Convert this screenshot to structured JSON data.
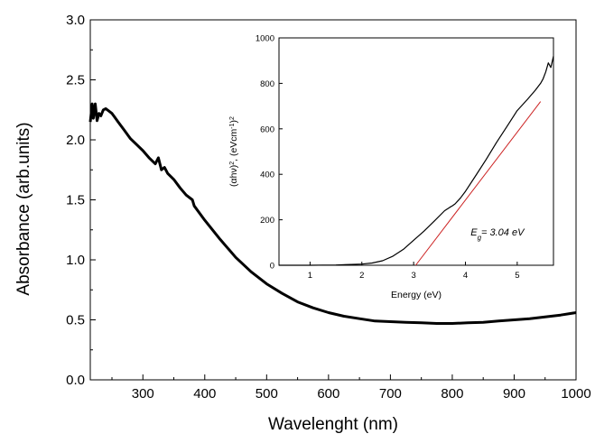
{
  "chart_data": [
    {
      "type": "line",
      "role": "main",
      "xlabel": "Wavelenght (nm)",
      "ylabel": "Absorbance (arb.units)",
      "xlim": [
        215,
        1000
      ],
      "ylim": [
        0,
        3
      ],
      "xticks": [
        300,
        400,
        500,
        600,
        700,
        800,
        900,
        1000
      ],
      "yticks": [
        0.0,
        0.5,
        1.0,
        1.5,
        2.0,
        2.5,
        3.0
      ],
      "xtick_labels": [
        "300",
        "400",
        "500",
        "600",
        "700",
        "800",
        "900",
        "1000"
      ],
      "ytick_labels": [
        "0.0",
        "0.5",
        "1.0",
        "1.5",
        "2.0",
        "2.5",
        "3.0"
      ],
      "grid": false,
      "series": [
        {
          "color": "#000000",
          "x": [
            215,
            218,
            220,
            223,
            226,
            229,
            232,
            236,
            240,
            245,
            250,
            260,
            270,
            280,
            290,
            300,
            310,
            320,
            325,
            330,
            335,
            340,
            350,
            360,
            370,
            380,
            383,
            400,
            425,
            450,
            475,
            500,
            525,
            550,
            575,
            600,
            625,
            650,
            675,
            700,
            725,
            750,
            775,
            800,
            825,
            850,
            875,
            900,
            925,
            950,
            975,
            1000
          ],
          "y": [
            2.15,
            2.3,
            2.18,
            2.3,
            2.16,
            2.22,
            2.2,
            2.25,
            2.26,
            2.24,
            2.22,
            2.15,
            2.08,
            2.01,
            1.96,
            1.91,
            1.85,
            1.8,
            1.85,
            1.75,
            1.77,
            1.72,
            1.67,
            1.6,
            1.54,
            1.5,
            1.45,
            1.33,
            1.17,
            1.02,
            0.9,
            0.8,
            0.72,
            0.65,
            0.6,
            0.56,
            0.53,
            0.51,
            0.49,
            0.485,
            0.48,
            0.475,
            0.47,
            0.47,
            0.475,
            0.48,
            0.49,
            0.5,
            0.51,
            0.525,
            0.54,
            0.56
          ]
        }
      ]
    },
    {
      "type": "line",
      "role": "inset",
      "xlabel": "Energy (eV)",
      "ylabel_parts": [
        "(αhν)",
        "2",
        ", (eVcm",
        "-1",
        ")",
        "2"
      ],
      "xlim": [
        0.4,
        5.7
      ],
      "ylim": [
        0,
        1000
      ],
      "xticks": [
        1,
        2,
        3,
        4,
        5
      ],
      "yticks": [
        0,
        200,
        400,
        600,
        800,
        1000
      ],
      "xtick_labels": [
        "1",
        "2",
        "3",
        "4",
        "5"
      ],
      "ytick_labels": [
        "0",
        "200",
        "400",
        "600",
        "800",
        "1000"
      ],
      "grid": false,
      "annotation_parts": [
        "E",
        "g",
        "= 3.04 eV"
      ],
      "annotation_value": 3.04,
      "series": [
        {
          "color": "#000000",
          "x": [
            0.4,
            1.0,
            1.5,
            2.0,
            2.2,
            2.4,
            2.6,
            2.8,
            3.0,
            3.2,
            3.4,
            3.6,
            3.7,
            3.75,
            3.8,
            3.9,
            4.0,
            4.2,
            4.4,
            4.6,
            4.8,
            5.0,
            5.2,
            5.35,
            5.45,
            5.5,
            5.55,
            5.6,
            5.65,
            5.7
          ],
          "y": [
            0,
            0,
            1,
            5,
            10,
            20,
            40,
            70,
            110,
            150,
            195,
            240,
            255,
            262,
            270,
            295,
            325,
            395,
            465,
            540,
            610,
            680,
            730,
            770,
            800,
            820,
            850,
            890,
            870,
            920
          ]
        },
        {
          "color": "#cc2222",
          "x": [
            3.04,
            5.45
          ],
          "y": [
            0,
            720
          ]
        }
      ]
    }
  ]
}
